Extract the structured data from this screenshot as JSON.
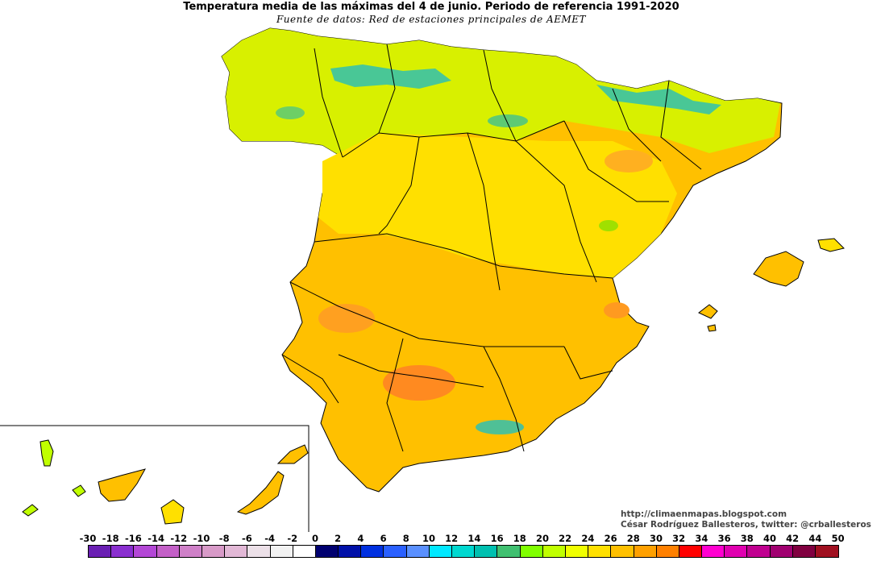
{
  "title": "Temperatura media de las máximas del 4 de junio. Periodo de referencia 1991-2020",
  "subtitle": "Fuente de datos: Red de estaciones principales de AEMET",
  "credit_blog": "http://climaenmapas.blogspot.com",
  "credit_author": "César Rodríguez Ballesteros, twitter: @crballesteros",
  "legend": {
    "ticks": [
      "-30",
      "-18",
      "-16",
      "-14",
      "-12",
      "-10",
      "-8",
      "-6",
      "-4",
      "-2",
      "0",
      "2",
      "4",
      "6",
      "8",
      "10",
      "12",
      "14",
      "16",
      "18",
      "20",
      "22",
      "24",
      "26",
      "28",
      "30",
      "32",
      "34",
      "36",
      "38",
      "40",
      "42",
      "44",
      "50"
    ],
    "colors": [
      "#6a1fb3",
      "#8a2fd0",
      "#b347d6",
      "#c460c8",
      "#cf80c8",
      "#d89ac8",
      "#e2b8d6",
      "#ece0e8",
      "#f2f2f2",
      "#ffffff",
      "#000070",
      "#0010a8",
      "#0030e0",
      "#2a60ff",
      "#5a90ff",
      "#00e8ff",
      "#00d8d0",
      "#00c0b0",
      "#40c070",
      "#80ff00",
      "#c0ff00",
      "#f0ff00",
      "#ffe000",
      "#ffc000",
      "#ffa000",
      "#ff8000",
      "#ff0000",
      "#ff00d0",
      "#e000b0",
      "#c00090",
      "#a00070",
      "#800040",
      "#a01020"
    ]
  }
}
